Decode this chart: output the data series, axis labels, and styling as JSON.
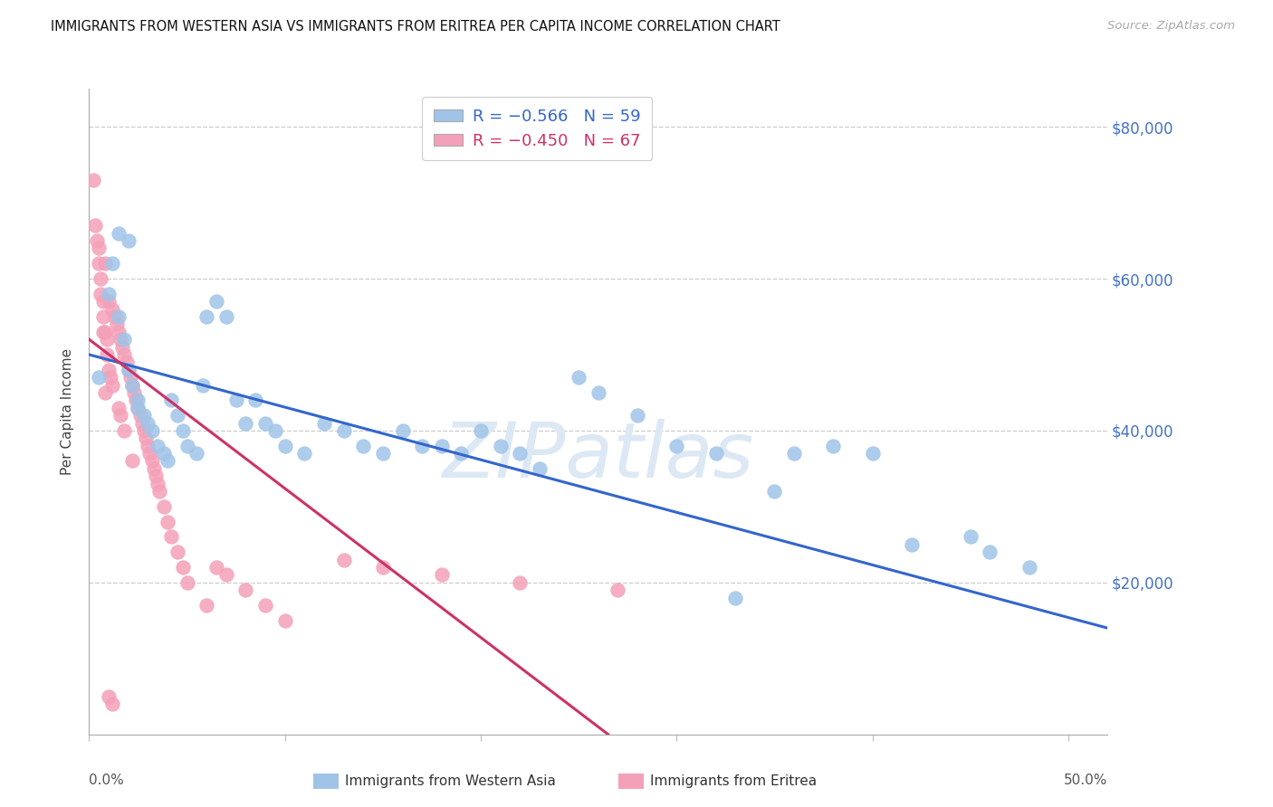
{
  "title": "IMMIGRANTS FROM WESTERN ASIA VS IMMIGRANTS FROM ERITREA PER CAPITA INCOME CORRELATION CHART",
  "source": "Source: ZipAtlas.com",
  "ylabel": "Per Capita Income",
  "legend_label_blue": "Immigrants from Western Asia",
  "legend_label_pink": "Immigrants from Eritrea",
  "legend_blue_R": "-0.566",
  "legend_blue_N": "59",
  "legend_pink_R": "-0.450",
  "legend_pink_N": "67",
  "blue_color": "#a0c4e8",
  "pink_color": "#f4a0b8",
  "blue_line_color": "#3366cc",
  "pink_line_color": "#cc3366",
  "ylim": [
    0,
    85000
  ],
  "xlim": [
    0.0,
    0.52
  ],
  "right_ytick_values": [
    80000,
    60000,
    40000,
    20000
  ],
  "right_ytick_labels": [
    "$80,000",
    "$60,000",
    "$40,000",
    "$20,000"
  ],
  "watermark_text": "ZIPatlas",
  "watermark_color": "#dde8f5",
  "blue_scatter_x": [
    0.005,
    0.01,
    0.012,
    0.015,
    0.018,
    0.02,
    0.022,
    0.025,
    0.025,
    0.028,
    0.03,
    0.032,
    0.035,
    0.038,
    0.04,
    0.042,
    0.045,
    0.048,
    0.05,
    0.055,
    0.058,
    0.06,
    0.065,
    0.07,
    0.075,
    0.08,
    0.085,
    0.09,
    0.095,
    0.1,
    0.11,
    0.12,
    0.13,
    0.14,
    0.15,
    0.16,
    0.17,
    0.18,
    0.19,
    0.2,
    0.21,
    0.22,
    0.23,
    0.25,
    0.26,
    0.28,
    0.3,
    0.32,
    0.33,
    0.35,
    0.36,
    0.38,
    0.4,
    0.42,
    0.45,
    0.46,
    0.48,
    0.015,
    0.02
  ],
  "blue_scatter_y": [
    47000,
    58000,
    62000,
    55000,
    52000,
    48000,
    46000,
    44000,
    43000,
    42000,
    41000,
    40000,
    38000,
    37000,
    36000,
    44000,
    42000,
    40000,
    38000,
    37000,
    46000,
    55000,
    57000,
    55000,
    44000,
    41000,
    44000,
    41000,
    40000,
    38000,
    37000,
    41000,
    40000,
    38000,
    37000,
    40000,
    38000,
    38000,
    37000,
    40000,
    38000,
    37000,
    35000,
    47000,
    45000,
    42000,
    38000,
    37000,
    18000,
    32000,
    37000,
    38000,
    37000,
    25000,
    26000,
    24000,
    22000,
    66000,
    65000
  ],
  "pink_scatter_x": [
    0.002,
    0.003,
    0.004,
    0.005,
    0.005,
    0.006,
    0.006,
    0.007,
    0.007,
    0.007,
    0.008,
    0.008,
    0.008,
    0.009,
    0.009,
    0.01,
    0.01,
    0.011,
    0.012,
    0.012,
    0.013,
    0.014,
    0.015,
    0.015,
    0.016,
    0.016,
    0.017,
    0.018,
    0.018,
    0.019,
    0.02,
    0.021,
    0.022,
    0.022,
    0.023,
    0.024,
    0.025,
    0.026,
    0.027,
    0.028,
    0.029,
    0.03,
    0.031,
    0.032,
    0.033,
    0.034,
    0.035,
    0.036,
    0.038,
    0.04,
    0.042,
    0.045,
    0.048,
    0.05,
    0.06,
    0.065,
    0.07,
    0.08,
    0.09,
    0.1,
    0.13,
    0.15,
    0.18,
    0.22,
    0.27,
    0.01,
    0.012
  ],
  "pink_scatter_y": [
    73000,
    67000,
    65000,
    64000,
    62000,
    60000,
    58000,
    57000,
    55000,
    53000,
    62000,
    53000,
    45000,
    52000,
    50000,
    57000,
    48000,
    47000,
    46000,
    56000,
    55000,
    54000,
    53000,
    43000,
    52000,
    42000,
    51000,
    50000,
    40000,
    49000,
    48000,
    47000,
    46000,
    36000,
    45000,
    44000,
    43000,
    42000,
    41000,
    40000,
    39000,
    38000,
    37000,
    36000,
    35000,
    34000,
    33000,
    32000,
    30000,
    28000,
    26000,
    24000,
    22000,
    20000,
    17000,
    22000,
    21000,
    19000,
    17000,
    15000,
    23000,
    22000,
    21000,
    20000,
    19000,
    5000,
    4000
  ],
  "blue_trend_x": [
    0.0,
    0.52
  ],
  "blue_trend_y": [
    50000,
    14000
  ],
  "pink_trend_x": [
    0.0,
    0.265
  ],
  "pink_trend_y": [
    52000,
    0
  ]
}
